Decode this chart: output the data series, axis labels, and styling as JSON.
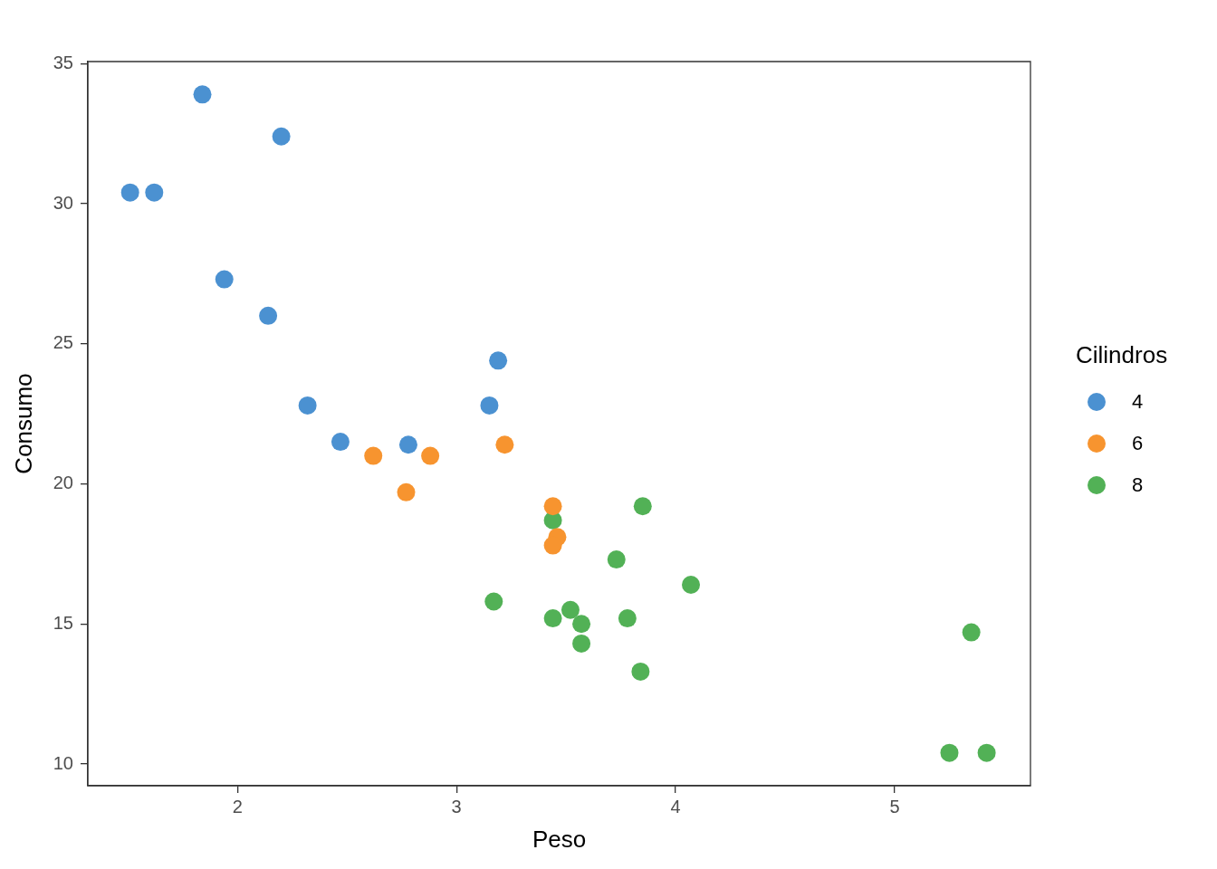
{
  "chart_data": {
    "type": "scatter",
    "xlabel": "Peso",
    "ylabel": "Consumo",
    "legend_title": "Cilindros",
    "legend": "right",
    "marker": "circle",
    "grid": false,
    "xlim": [
      1.317,
      5.62
    ],
    "ylim": [
      9.225,
      35.075
    ],
    "xticks": [
      2,
      3,
      4,
      5
    ],
    "yticks": [
      10,
      15,
      20,
      25,
      30,
      35
    ],
    "series": [
      {
        "name": "4",
        "color": "#4b91d1",
        "x": [
          2.32,
          3.19,
          3.15,
          2.2,
          1.62,
          1.84,
          2.47,
          1.94,
          2.14,
          1.51,
          2.78
        ],
        "values": [
          22.8,
          24.4,
          22.8,
          32.4,
          30.4,
          33.9,
          21.5,
          27.3,
          26.0,
          30.4,
          21.4
        ]
      },
      {
        "name": "6",
        "color": "#f7942f",
        "x": [
          2.62,
          2.88,
          3.22,
          3.46,
          3.44,
          3.44,
          2.77
        ],
        "values": [
          21.0,
          21.0,
          21.4,
          18.1,
          19.2,
          17.8,
          19.7
        ]
      },
      {
        "name": "8",
        "color": "#52b156",
        "x": [
          3.44,
          3.57,
          4.07,
          3.73,
          3.78,
          5.25,
          5.42,
          5.35,
          3.52,
          3.44,
          3.84,
          3.85,
          3.17,
          3.57
        ],
        "values": [
          18.7,
          14.3,
          16.4,
          17.3,
          15.2,
          10.4,
          10.4,
          14.7,
          15.5,
          15.2,
          13.3,
          19.2,
          15.8,
          15.0
        ]
      }
    ]
  }
}
